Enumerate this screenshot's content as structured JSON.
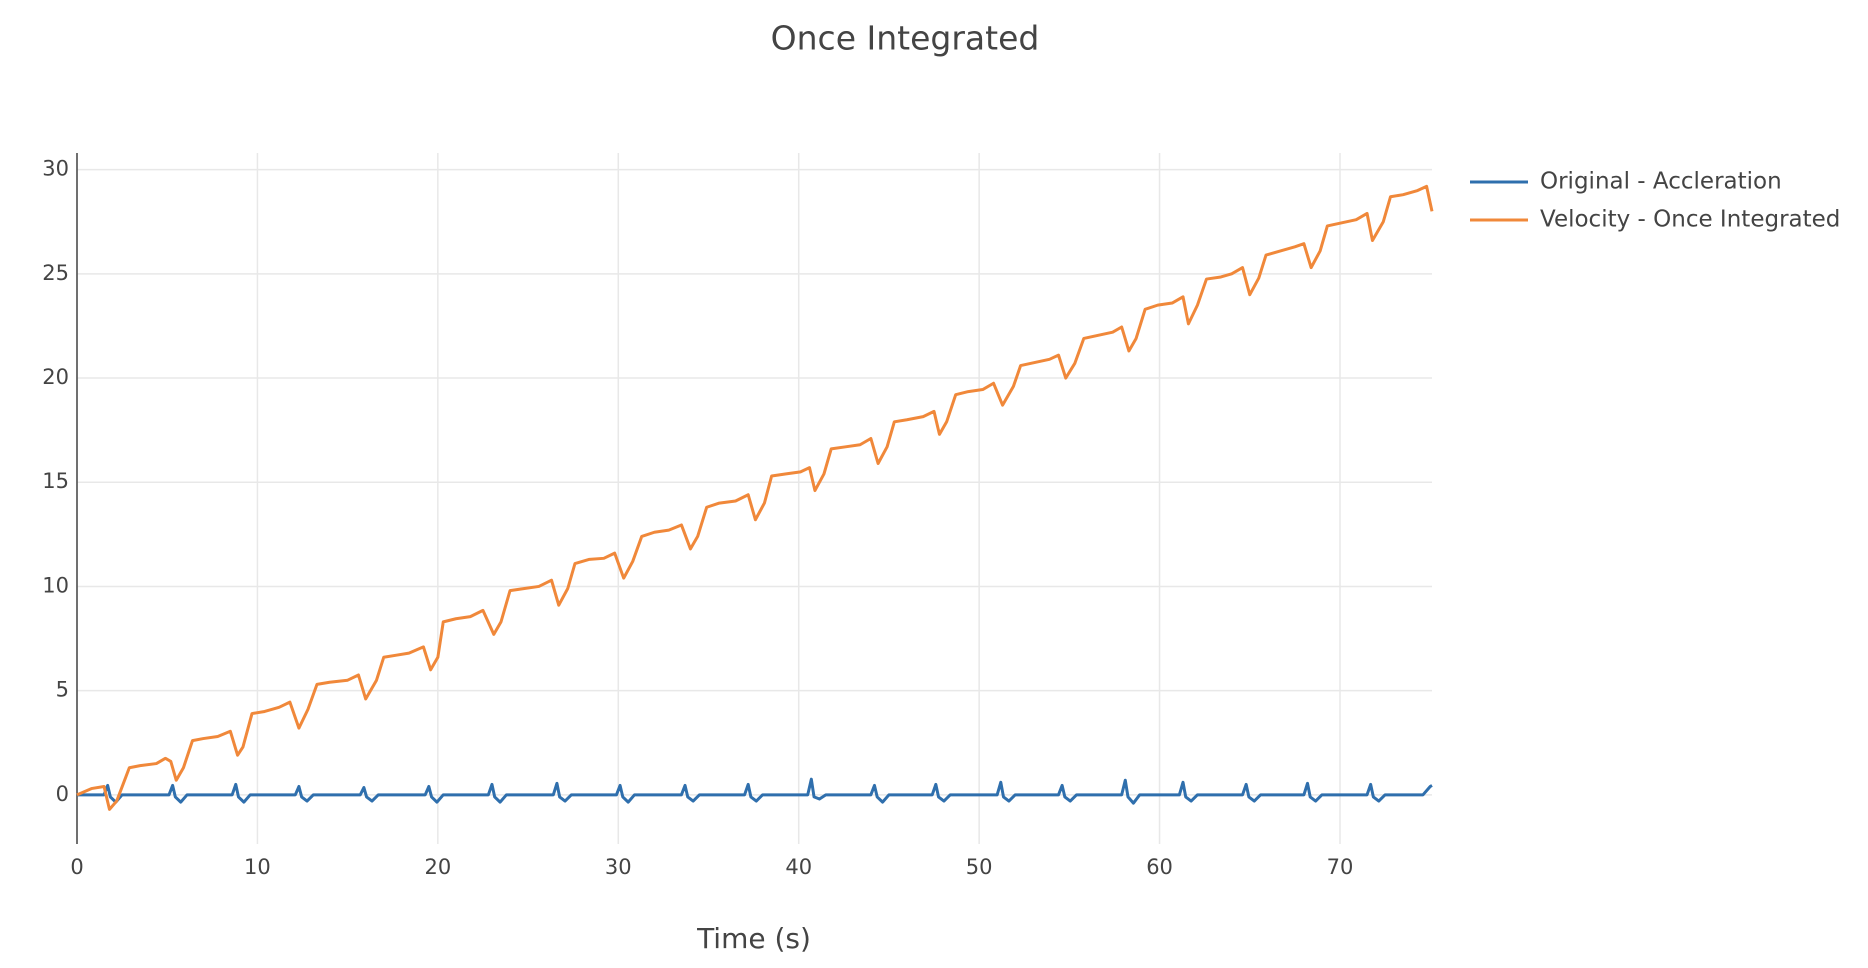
{
  "chart_data": {
    "type": "line",
    "title": "Once Integrated",
    "x_label": "Time (s)",
    "xlim": [
      0,
      75.1
    ],
    "ylim": [
      -2.36,
      30.8
    ],
    "xticks": [
      0,
      10,
      20,
      30,
      40,
      50,
      60,
      70
    ],
    "yticks": [
      0,
      5,
      10,
      15,
      20,
      25,
      30
    ],
    "grid": true,
    "legend": "outside-right",
    "series": [
      {
        "name": "Original - Accleration",
        "color": "#2f6fad",
        "x": [
          0,
          1.5,
          1.7,
          1.85,
          2.15,
          2.5,
          5.1,
          5.3,
          5.45,
          5.75,
          6.1,
          8.6,
          8.8,
          8.95,
          9.25,
          9.6,
          12.1,
          12.3,
          12.45,
          12.75,
          13.1,
          15.7,
          15.9,
          16.05,
          16.35,
          16.7,
          19.3,
          19.5,
          19.65,
          19.95,
          20.3,
          22.8,
          23.0,
          23.15,
          23.45,
          23.8,
          26.4,
          26.6,
          26.75,
          27.05,
          27.4,
          29.9,
          30.1,
          30.25,
          30.55,
          30.9,
          33.5,
          33.7,
          33.85,
          34.15,
          34.5,
          37.0,
          37.2,
          37.35,
          37.65,
          38.0,
          40.5,
          40.7,
          40.85,
          41.15,
          41.5,
          44.0,
          44.2,
          44.35,
          44.65,
          45.0,
          47.4,
          47.6,
          47.75,
          48.05,
          48.4,
          51.0,
          51.2,
          51.35,
          51.65,
          52.0,
          54.4,
          54.6,
          54.75,
          55.05,
          55.4,
          57.9,
          58.1,
          58.25,
          58.55,
          58.9,
          61.1,
          61.3,
          61.45,
          61.75,
          62.1,
          64.6,
          64.8,
          64.95,
          65.25,
          65.6,
          68.0,
          68.2,
          68.35,
          68.65,
          69.0,
          71.5,
          71.7,
          71.85,
          72.15,
          72.5,
          74.6,
          75.0,
          75.1
        ],
        "values": [
          0,
          0,
          0.45,
          -0.1,
          -0.35,
          0,
          0,
          0.45,
          -0.1,
          -0.35,
          0,
          0,
          0.5,
          -0.1,
          -0.35,
          0,
          0,
          0.4,
          -0.1,
          -0.3,
          0,
          0,
          0.35,
          -0.1,
          -0.3,
          0,
          0,
          0.4,
          -0.1,
          -0.35,
          0,
          0,
          0.5,
          -0.1,
          -0.35,
          0,
          0,
          0.55,
          -0.1,
          -0.3,
          0,
          0,
          0.45,
          -0.1,
          -0.35,
          0,
          0,
          0.45,
          -0.1,
          -0.3,
          0,
          0,
          0.5,
          -0.1,
          -0.3,
          0,
          0,
          0.75,
          -0.1,
          -0.2,
          0,
          0,
          0.45,
          -0.1,
          -0.35,
          0,
          0,
          0.5,
          -0.1,
          -0.3,
          0,
          0,
          0.6,
          -0.1,
          -0.3,
          0,
          0,
          0.45,
          -0.1,
          -0.3,
          0,
          0,
          0.7,
          -0.1,
          -0.4,
          0,
          0,
          0.6,
          -0.1,
          -0.3,
          0,
          0,
          0.5,
          -0.1,
          -0.3,
          0,
          0,
          0.55,
          -0.1,
          -0.3,
          0,
          0,
          0.5,
          -0.1,
          -0.3,
          0,
          0,
          0.4,
          0.45
        ]
      },
      {
        "name": "Velocity - Once Integrated",
        "color": "#f0883a",
        "x": [
          0,
          0.8,
          1.5,
          1.8,
          2.2,
          2.9,
          3.5,
          4.4,
          4.9,
          5.2,
          5.5,
          5.9,
          6.4,
          7.0,
          7.8,
          8.5,
          8.9,
          9.2,
          9.7,
          10.4,
          11.2,
          11.8,
          12.3,
          12.8,
          13.3,
          14.0,
          15.0,
          15.6,
          16.0,
          16.6,
          17.0,
          17.7,
          18.4,
          19.2,
          19.6,
          20.0,
          20.3,
          21.0,
          21.8,
          22.5,
          23.1,
          23.5,
          24.0,
          24.8,
          25.6,
          26.3,
          26.7,
          27.2,
          27.6,
          28.4,
          29.2,
          29.8,
          30.3,
          30.8,
          31.3,
          32.0,
          32.8,
          33.5,
          34.0,
          34.4,
          34.9,
          35.6,
          36.5,
          37.2,
          37.6,
          38.1,
          38.5,
          39.3,
          40.1,
          40.6,
          40.9,
          41.4,
          41.8,
          42.6,
          43.4,
          44.0,
          44.4,
          44.9,
          45.3,
          46.0,
          46.9,
          47.5,
          47.8,
          48.2,
          48.7,
          49.4,
          50.2,
          50.8,
          51.3,
          51.9,
          52.3,
          53.1,
          53.9,
          54.4,
          54.8,
          55.3,
          55.8,
          56.6,
          57.4,
          57.9,
          58.3,
          58.7,
          59.2,
          59.9,
          60.7,
          61.3,
          61.6,
          62.1,
          62.6,
          63.4,
          64.0,
          64.6,
          65.0,
          65.5,
          65.9,
          66.7,
          67.5,
          68.0,
          68.4,
          68.9,
          69.3,
          70.1,
          70.9,
          71.5,
          71.8,
          72.4,
          72.8,
          73.5,
          74.3,
          74.8,
          75.1
        ],
        "values": [
          0,
          0.3,
          0.4,
          -0.7,
          -0.3,
          1.3,
          1.4,
          1.5,
          1.75,
          1.6,
          0.7,
          1.3,
          2.6,
          2.7,
          2.8,
          3.05,
          1.9,
          2.3,
          3.9,
          4.0,
          4.2,
          4.45,
          3.2,
          4.1,
          5.3,
          5.4,
          5.5,
          5.75,
          4.6,
          5.5,
          6.6,
          6.7,
          6.8,
          7.1,
          6.0,
          6.6,
          8.3,
          8.45,
          8.55,
          8.85,
          7.7,
          8.3,
          9.8,
          9.9,
          10.0,
          10.3,
          9.1,
          9.9,
          11.1,
          11.3,
          11.35,
          11.6,
          10.4,
          11.2,
          12.4,
          12.6,
          12.7,
          12.95,
          11.8,
          12.4,
          13.8,
          14.0,
          14.1,
          14.4,
          13.2,
          14.0,
          15.3,
          15.4,
          15.5,
          15.7,
          14.6,
          15.4,
          16.6,
          16.7,
          16.8,
          17.1,
          15.9,
          16.7,
          17.9,
          18.0,
          18.15,
          18.4,
          17.3,
          17.9,
          19.2,
          19.35,
          19.45,
          19.75,
          18.7,
          19.6,
          20.6,
          20.75,
          20.9,
          21.1,
          20.0,
          20.7,
          21.9,
          22.05,
          22.2,
          22.45,
          21.3,
          21.9,
          23.3,
          23.5,
          23.6,
          23.9,
          22.6,
          23.5,
          24.75,
          24.85,
          25.0,
          25.3,
          24.0,
          24.8,
          25.9,
          26.1,
          26.3,
          26.45,
          25.3,
          26.1,
          27.3,
          27.45,
          27.6,
          27.9,
          26.6,
          27.5,
          28.7,
          28.8,
          29.0,
          29.2,
          28.0
        ]
      }
    ]
  }
}
